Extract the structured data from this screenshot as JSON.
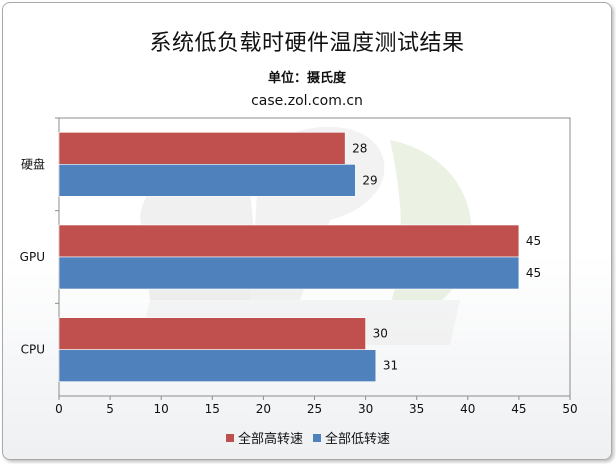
{
  "title": "系统低负载时硬件温度测试结果",
  "subtitle": "单位：摄氏度",
  "source": "case.zol.com.cn",
  "chart_data": {
    "type": "bar",
    "orientation": "horizontal",
    "categories": [
      "硬盘",
      "GPU",
      "CPU"
    ],
    "series": [
      {
        "name": "全部高转速",
        "color": "#c0504d",
        "values": [
          28,
          45,
          30
        ]
      },
      {
        "name": "全部低转速",
        "color": "#4f81bd",
        "values": [
          29,
          45,
          31
        ]
      }
    ],
    "xlim": [
      0,
      50
    ],
    "x_ticks": [
      0,
      5,
      10,
      15,
      20,
      25,
      30,
      35,
      40,
      45,
      50
    ],
    "grid": false,
    "legend_position": "bottom"
  }
}
